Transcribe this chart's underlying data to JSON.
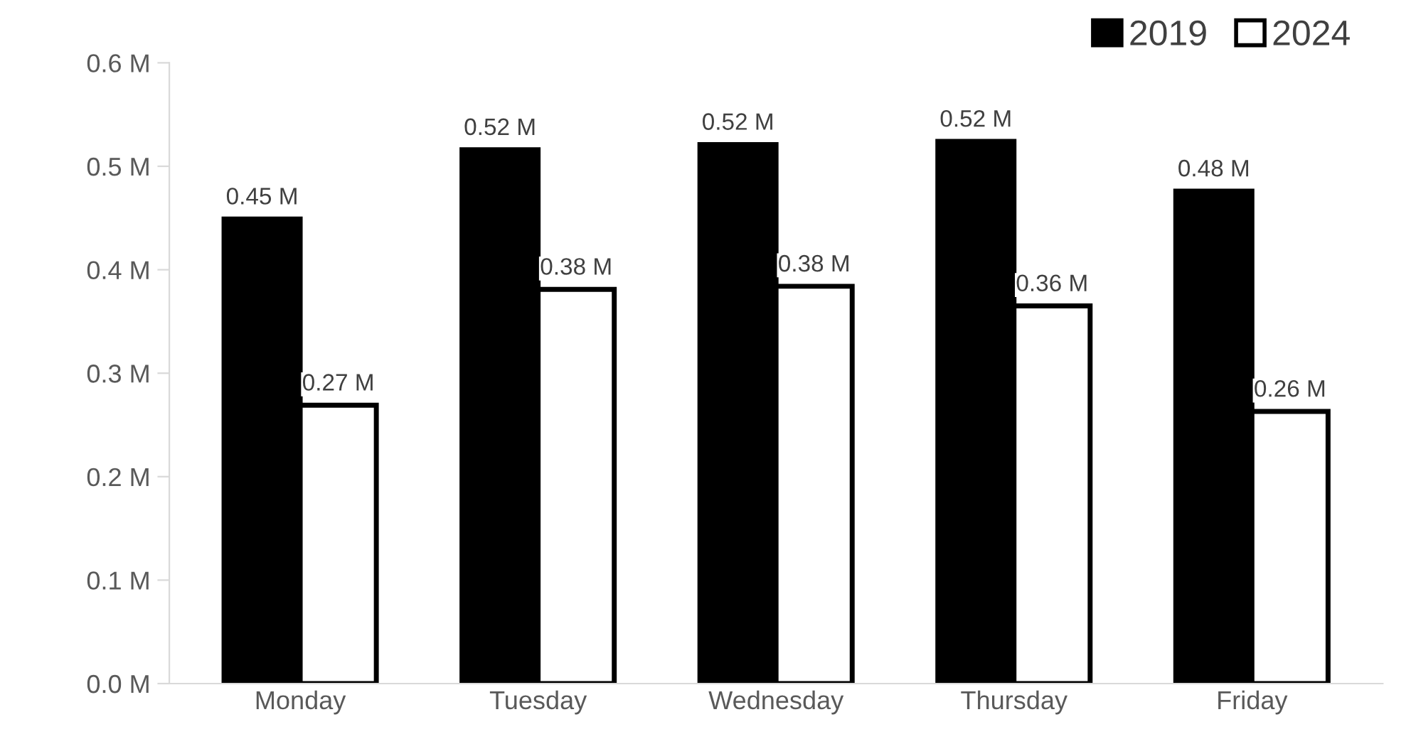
{
  "chart_data": {
    "type": "bar",
    "categories": [
      "Monday",
      "Tuesday",
      "Wednesday",
      "Thursday",
      "Friday"
    ],
    "series": [
      {
        "name": "2019",
        "color": "#000000",
        "values": [
          0.449,
          0.516,
          0.521,
          0.524,
          0.476
        ],
        "value_labels": [
          "0.45 M",
          "0.52 M",
          "0.52 M",
          "0.52 M",
          "0.48 M"
        ]
      },
      {
        "name": "2024",
        "color": "#ffffff",
        "values": [
          0.269,
          0.381,
          0.384,
          0.365,
          0.263
        ],
        "value_labels": [
          "0.27 M",
          "0.38 M",
          "0.38 M",
          "0.36 M",
          "0.26 M"
        ]
      }
    ],
    "ylim": [
      0,
      0.6
    ],
    "yticks": [
      {
        "value": 0,
        "label": "0.0 M"
      },
      {
        "value": 0.1,
        "label": "0.1 M"
      },
      {
        "value": 0.2,
        "label": "0.2 M"
      },
      {
        "value": 0.3,
        "label": "0.3 M"
      },
      {
        "value": 0.4,
        "label": "0.4 M"
      },
      {
        "value": 0.5,
        "label": "0.5 M"
      },
      {
        "value": 0.6,
        "label": "0.6 M"
      }
    ],
    "grid": false,
    "legend": "top right"
  }
}
